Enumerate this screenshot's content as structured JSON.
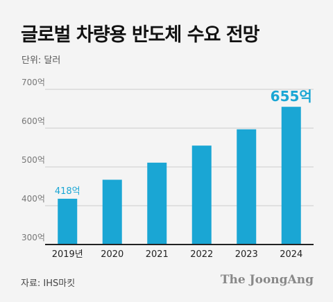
{
  "title": "글로벌 차량용 반도체 수요 전망",
  "unit_label": "단위: 달러",
  "source": "자료: IHS마킷",
  "brand": "The JoongAng",
  "colors": {
    "bar": "#1aa6d4",
    "axis": "#222222",
    "grid": "#cccccc"
  },
  "chart_data": {
    "type": "bar",
    "categories": [
      "2019년",
      "2020",
      "2021",
      "2022",
      "2023",
      "2024"
    ],
    "values": [
      418,
      467,
      511,
      555,
      597,
      655
    ],
    "y_ticks": [
      "300억",
      "400억",
      "500억",
      "600억",
      "700억"
    ],
    "y_tick_values": [
      300,
      400,
      500,
      600,
      700
    ],
    "ylim": [
      300,
      700
    ],
    "grid": true,
    "data_labels": [
      {
        "index": 0,
        "text": "418억"
      },
      {
        "index": 5,
        "text": "655억"
      }
    ]
  }
}
